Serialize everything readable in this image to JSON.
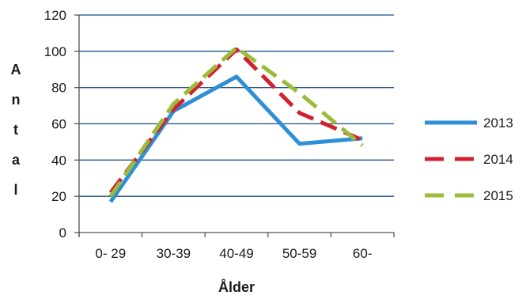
{
  "chart_data": {
    "type": "line",
    "title": "",
    "xlabel": "Ålder",
    "ylabel": "Antal",
    "categories": [
      "0- 29",
      "30-39",
      "40-49",
      "50-59",
      "60-"
    ],
    "ylim": [
      0,
      120
    ],
    "yticks": [
      0,
      20,
      40,
      60,
      80,
      100,
      120
    ],
    "grid": true,
    "legend_position": "right",
    "series": [
      {
        "name": "2013",
        "values": [
          17,
          67,
          86,
          49,
          52
        ],
        "color": "#2e8fd6",
        "style": "solid"
      },
      {
        "name": "2014",
        "values": [
          22,
          68,
          101,
          66,
          51
        ],
        "color": "#d2202f",
        "style": "dashed"
      },
      {
        "name": "2015",
        "values": [
          20,
          71,
          102,
          77,
          48
        ],
        "color": "#9bbb3a",
        "style": "dashed"
      }
    ]
  }
}
